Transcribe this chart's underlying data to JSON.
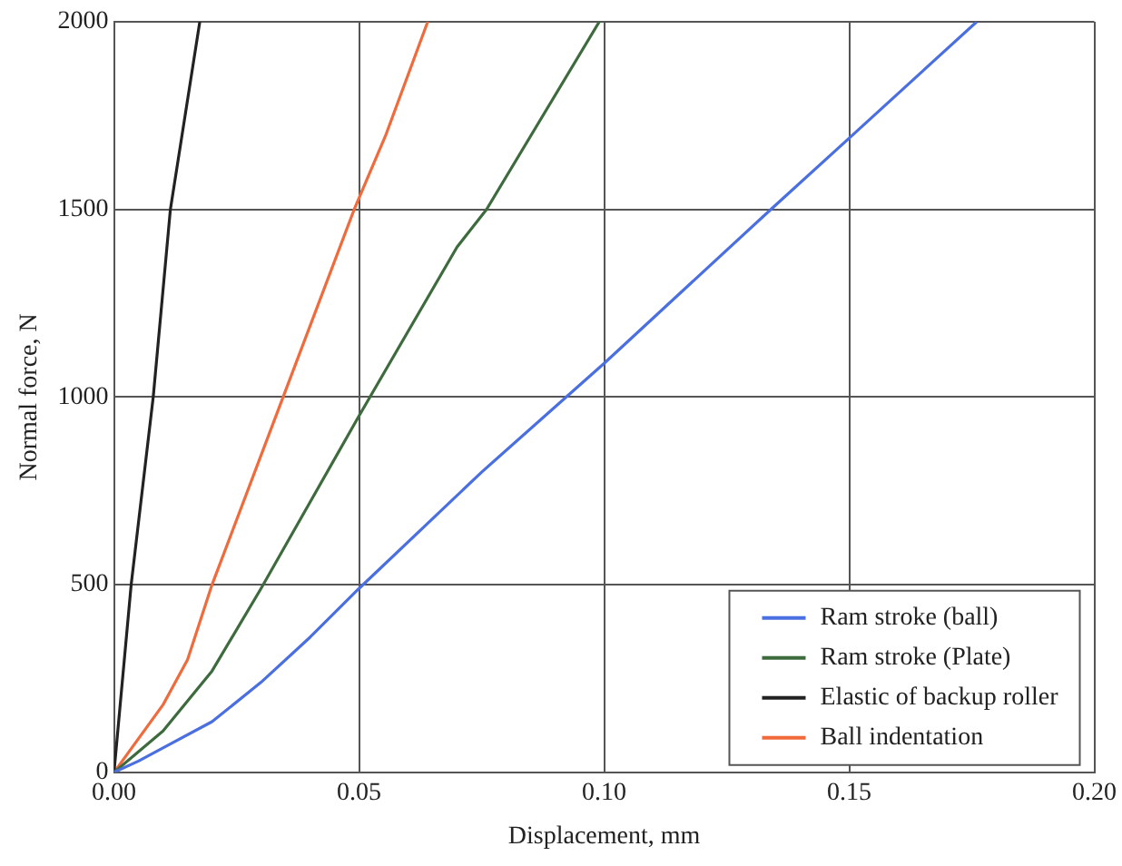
{
  "chart_data": {
    "type": "line",
    "xlabel": "Displacement, mm",
    "ylabel": "Normal force, N",
    "xlim": [
      0,
      0.2
    ],
    "ylim": [
      0,
      2000
    ],
    "xticks": [
      {
        "value": 0,
        "label": "0.00"
      },
      {
        "value": 0.05,
        "label": "0.05"
      },
      {
        "value": 0.1,
        "label": "0.10"
      },
      {
        "value": 0.15,
        "label": "0.15"
      },
      {
        "value": 0.2,
        "label": "0.20"
      }
    ],
    "yticks": [
      0,
      500,
      1000,
      1500,
      2000
    ],
    "grid": true,
    "legend": "bottom right",
    "marker": "none",
    "line_style": "solid",
    "series": [
      {
        "name": "Ram stroke (ball)",
        "color": "#4a6fe0",
        "x": [
          0,
          0.005,
          0.01,
          0.02,
          0.03,
          0.04,
          0.05,
          0.075,
          0.1,
          0.134,
          0.15,
          0.176
        ],
        "values": [
          0,
          30,
          65,
          135,
          240,
          360,
          490,
          800,
          1090,
          1500,
          1690,
          2000
        ]
      },
      {
        "name": "Ram stroke (Plate)",
        "color": "#3e6b3e",
        "x": [
          0,
          0.01,
          0.02,
          0.03,
          0.05,
          0.07,
          0.076,
          0.099
        ],
        "values": [
          0,
          110,
          270,
          490,
          950,
          1400,
          1500,
          2000
        ]
      },
      {
        "name": "Elastic of backup roller",
        "color": "#222222",
        "x": [
          0,
          0.0035,
          0.008,
          0.0115,
          0.0175
        ],
        "values": [
          0,
          500,
          1000,
          1500,
          2000
        ]
      },
      {
        "name": "Ball indentation",
        "color": "#f06a3c",
        "x": [
          0,
          0.005,
          0.01,
          0.015,
          0.02,
          0.0345,
          0.049,
          0.0555,
          0.064
        ],
        "values": [
          0,
          90,
          180,
          300,
          500,
          1000,
          1500,
          1700,
          2000
        ]
      }
    ]
  }
}
